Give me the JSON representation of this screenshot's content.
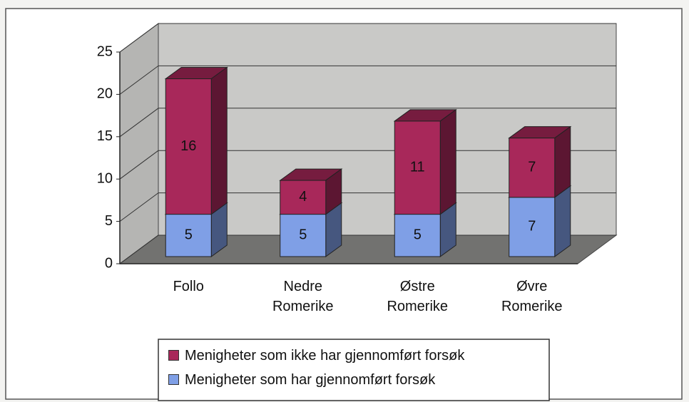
{
  "chart_data": {
    "type": "bar3d_stacked",
    "categories": [
      "Follo",
      "Nedre Romerike",
      "Østre Romerike",
      "Øvre Romerike"
    ],
    "series": [
      {
        "name": "Menigheter som ikke har gjennomført forsøk",
        "color": "#a8285a",
        "values": [
          16,
          4,
          11,
          7
        ]
      },
      {
        "name": "Menigheter som har gjennomført forsøk",
        "color": "#7f9fe6",
        "values": [
          5,
          5,
          5,
          7
        ]
      }
    ],
    "ylim": [
      0,
      25
    ],
    "yticks": [
      0,
      5,
      10,
      15,
      20,
      25
    ],
    "grid": true
  }
}
